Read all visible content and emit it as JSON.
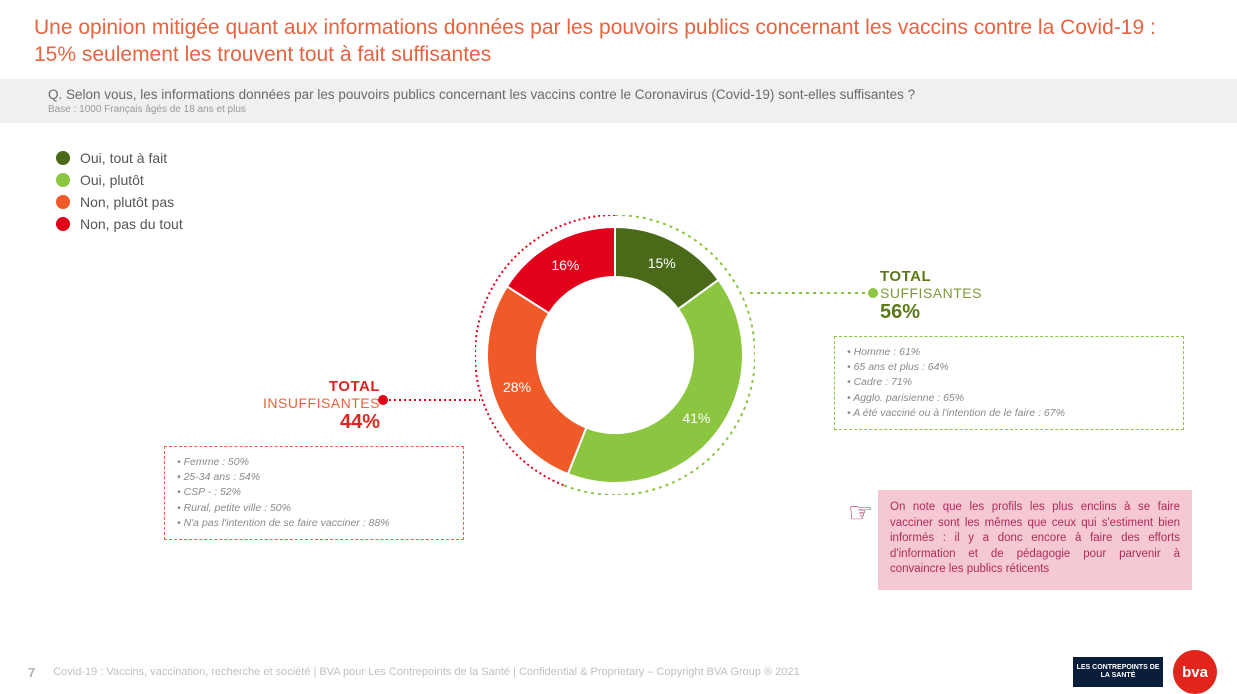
{
  "title": "Une opinion mitigée quant aux informations données par les pouvoirs publics concernant les vaccins contre la Covid-19 : 15% seulement les trouvent tout à fait suffisantes",
  "question": "Q. Selon vous, les informations données par les pouvoirs publics concernant les vaccins contre le Coronavirus (Covid-19) sont-elles suffisantes ?",
  "base": "Base : 1000 Français âgés de 18 ans et plus",
  "legend": [
    {
      "label": "Oui, tout à fait",
      "color": "#4a6a1a"
    },
    {
      "label": "Oui, plutôt",
      "color": "#8cc641"
    },
    {
      "label": "Non, plutôt pas",
      "color": "#ef5a28"
    },
    {
      "label": "Non, pas du tout",
      "color": "#e2001a"
    }
  ],
  "donut": {
    "type": "donut",
    "inner_radius": 78,
    "outer_radius": 128,
    "start_angle_deg": 0,
    "label_fontsize": 14,
    "label_color": "#ffffff",
    "slices": [
      {
        "label": "15%",
        "value": 15,
        "color": "#4a6a1a"
      },
      {
        "label": "41%",
        "value": 41,
        "color": "#8cc641"
      },
      {
        "label": "28%",
        "value": 28,
        "color": "#ef5a28"
      },
      {
        "label": "16%",
        "value": 16,
        "color": "#e2001a"
      }
    ],
    "group_arcs": [
      {
        "from_pct": 0,
        "to_pct": 56,
        "color": "#8cc641",
        "dash": "3 4",
        "radius": 140
      },
      {
        "from_pct": 56,
        "to_pct": 100,
        "color": "#e2001a",
        "dash": "2 3",
        "radius": 140
      }
    ]
  },
  "groups": {
    "suffisantes": {
      "total": "TOTAL",
      "sub": "SUFFISANTES",
      "pct": "56%",
      "details": [
        "Homme : 61%",
        "65 ans et plus : 64%",
        "Cadre : 71%",
        "Agglo. parisienne : 65%",
        "A été vacciné ou à l'intention de le faire : 67%"
      ]
    },
    "insuffisantes": {
      "total": "TOTAL",
      "sub": "INSUFFISANTES",
      "pct": "44%",
      "details": [
        "Femme : 50%",
        "25-34 ans : 54%",
        "CSP - : 52%",
        "Rural, petite ville : 50%",
        "N'a pas l'intention de se faire vacciner : 88%"
      ]
    }
  },
  "note": "On note que les profils les plus enclins à se faire vacciner sont les mêmes que ceux qui s'estiment bien informés : il y a donc encore à faire des efforts d'information et de pédagogie pour parvenir à convaincre les publics réticents",
  "footer": {
    "page": "7",
    "text": "Covid-19 : Vaccins, vaccination, recherche et société | BVA pour Les Contrepoints de la Santé | Confidential & Proprietary – Copyright BVA Group ® 2021",
    "logo1": "LES CONTREPOINTS DE LA SANTÉ",
    "logo2": "bva"
  },
  "colors": {
    "title": "#e8633f",
    "note_bg": "#f4c9d3",
    "note_text": "#b02a5a"
  }
}
